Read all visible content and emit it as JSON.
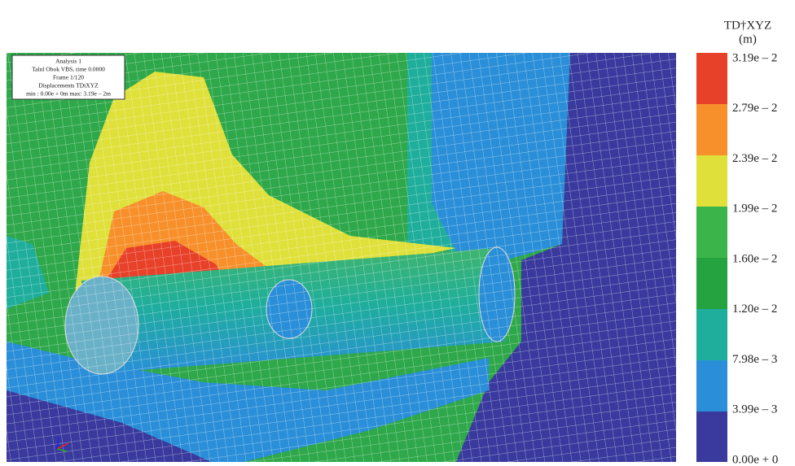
{
  "info_box": {
    "lines": [
      "Analysis 1",
      "Talnl Obok VBS, time 0.0000",
      "Frame 1/120",
      "Displacements TDtXYZ",
      "min : 0.00e + 0m max: 3.19e – 2m"
    ]
  },
  "legend": {
    "title": "TD†XYZ",
    "unit": "(m)",
    "labels": [
      "3.19e – 2",
      "2.79e – 2",
      "2.39e – 2",
      "1.99e – 2",
      "1.60e – 2",
      "1.20e – 2",
      "7.98e – 3",
      "3.99e – 3",
      "0.00e + 0"
    ]
  }
}
